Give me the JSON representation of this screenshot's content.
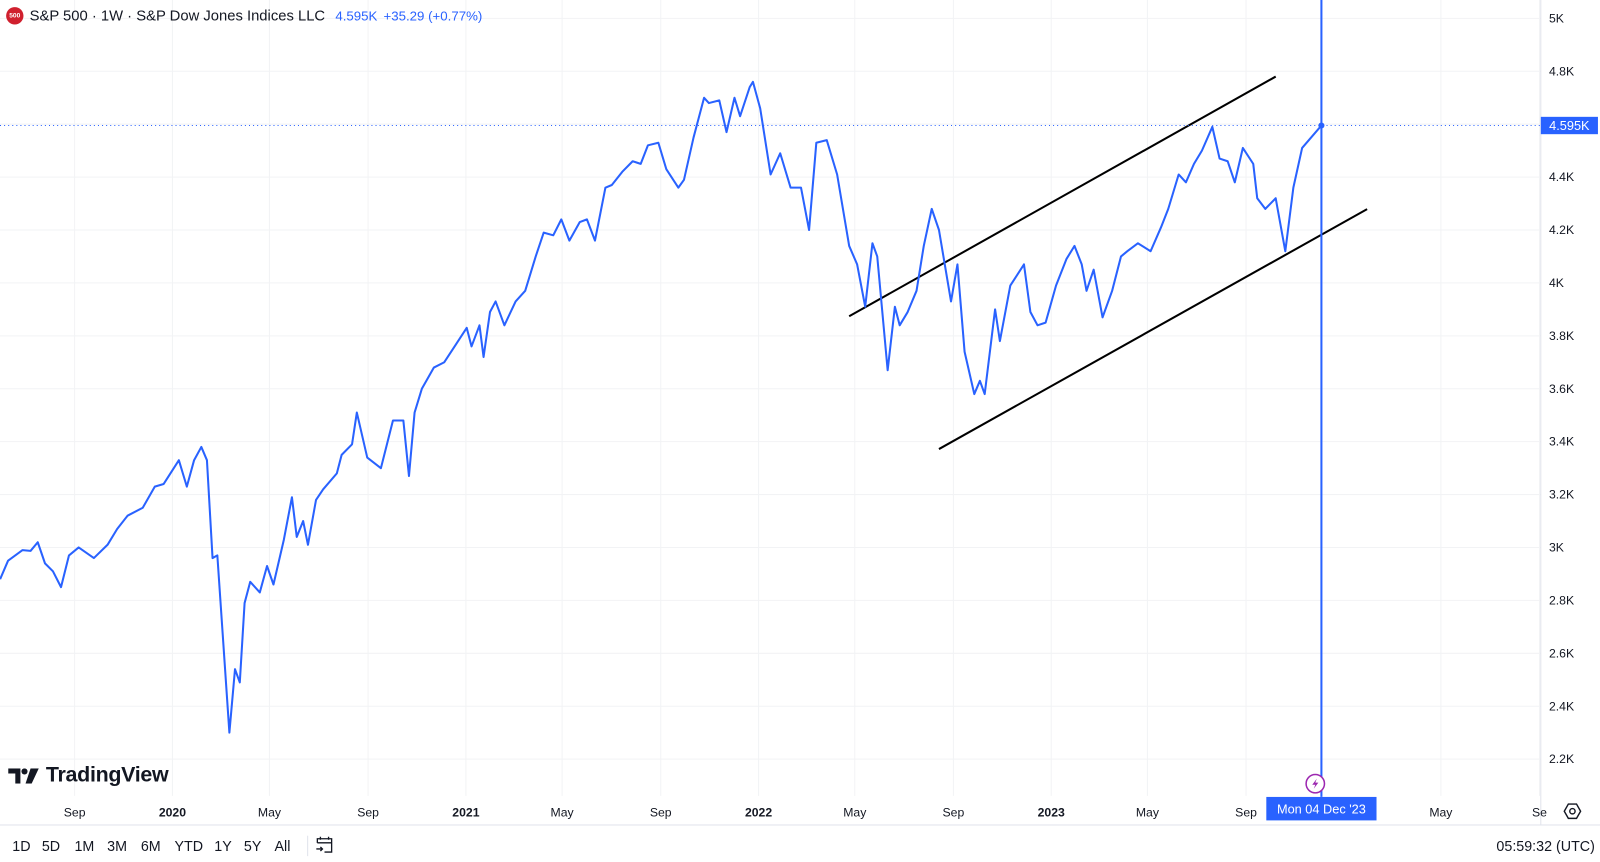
{
  "header": {
    "logo_text": "500",
    "title": "S&P 500 · 1W · S&P Dow Jones Indices LLC",
    "last_value": "4.595K",
    "change": "+35.29 (+0.77%)"
  },
  "watermark": "TradingView",
  "crosshair": {
    "date_label": "Mon 04 Dec '23",
    "date": "2023-12-04"
  },
  "price_label": "4.595K",
  "toolbar": {
    "timeframes": [
      "1D",
      "5D",
      "1M",
      "3M",
      "6M",
      "YTD",
      "1Y",
      "5Y",
      "All"
    ],
    "goto_date_icon": "calendar-arrow-icon",
    "clock": "05:59:32 (UTC)"
  },
  "colors": {
    "series": "#2962ff",
    "trendline": "#000000",
    "logo": "#d0202e",
    "event_marker": "#9c27b0"
  },
  "chart_data": {
    "type": "line",
    "title": "S&P 500 · 1W · S&P Dow Jones Indices LLC",
    "xlabel": "",
    "ylabel": "",
    "y_axis_position": "right",
    "ylim": [
      2060,
      5070
    ],
    "grid": true,
    "y_ticks": [
      "5K",
      "4.8K",
      "4.4K",
      "4.2K",
      "4K",
      "3.8K",
      "3.6K",
      "3.4K",
      "3.2K",
      "3K",
      "2.8K",
      "2.6K",
      "2.4K",
      "2.2K"
    ],
    "y_tick_values": [
      5000,
      4800,
      4400,
      4200,
      4000,
      3800,
      3600,
      3400,
      3200,
      3000,
      2800,
      2600,
      2400,
      2200
    ],
    "x_ticks": [
      {
        "label": "Sep",
        "date": "2019-09-01",
        "bold": false
      },
      {
        "label": "2020",
        "date": "2020-01-01",
        "bold": true
      },
      {
        "label": "May",
        "date": "2020-05-01",
        "bold": false
      },
      {
        "label": "Sep",
        "date": "2020-09-01",
        "bold": false
      },
      {
        "label": "2021",
        "date": "2021-01-01",
        "bold": true
      },
      {
        "label": "May",
        "date": "2021-05-01",
        "bold": false
      },
      {
        "label": "Sep",
        "date": "2021-09-01",
        "bold": false
      },
      {
        "label": "2022",
        "date": "2022-01-01",
        "bold": true
      },
      {
        "label": "May",
        "date": "2022-05-01",
        "bold": false
      },
      {
        "label": "Sep",
        "date": "2022-09-01",
        "bold": false
      },
      {
        "label": "2023",
        "date": "2023-01-01",
        "bold": true
      },
      {
        "label": "May",
        "date": "2023-05-01",
        "bold": false
      },
      {
        "label": "Sep",
        "date": "2023-09-01",
        "bold": false
      },
      {
        "label": "May",
        "date": "2024-05-01",
        "bold": false
      },
      {
        "label": "Se",
        "date": "2024-09-01",
        "bold": false
      }
    ],
    "series": [
      {
        "dates": [
          "2019-05-31",
          "2019-06-10",
          "2019-06-28",
          "2019-07-08",
          "2019-07-17",
          "2019-07-26",
          "2019-08-05",
          "2019-08-15",
          "2019-08-25",
          "2019-09-06",
          "2019-09-25",
          "2019-10-12",
          "2019-10-24",
          "2019-11-06",
          "2019-11-25",
          "2019-12-10",
          "2019-12-21",
          "2020-01-09",
          "2020-01-19",
          "2020-01-28",
          "2020-02-06",
          "2020-02-13",
          "2020-02-20",
          "2020-02-26",
          "2020-03-12",
          "2020-03-19",
          "2020-03-25",
          "2020-03-31",
          "2020-04-07",
          "2020-04-19",
          "2020-04-28",
          "2020-05-06",
          "2020-05-19",
          "2020-05-29",
          "2020-06-04",
          "2020-06-12",
          "2020-06-18",
          "2020-06-28",
          "2020-07-07",
          "2020-07-24",
          "2020-07-30",
          "2020-08-12",
          "2020-08-18",
          "2020-08-31",
          "2020-09-17",
          "2020-10-02",
          "2020-10-15",
          "2020-10-22",
          "2020-10-29",
          "2020-11-07",
          "2020-11-22",
          "2020-12-05",
          "2020-12-20",
          "2021-01-02",
          "2021-01-08",
          "2021-01-18",
          "2021-01-23",
          "2021-01-31",
          "2021-02-07",
          "2021-02-18",
          "2021-03-04",
          "2021-03-16",
          "2021-03-29",
          "2021-04-08",
          "2021-04-20",
          "2021-04-30",
          "2021-05-10",
          "2021-05-23",
          "2021-06-01",
          "2021-06-11",
          "2021-06-24",
          "2021-07-02",
          "2021-07-15",
          "2021-07-28",
          "2021-08-07",
          "2021-08-16",
          "2021-08-29",
          "2021-09-08",
          "2021-09-23",
          "2021-09-30",
          "2021-10-12",
          "2021-10-25",
          "2021-10-31",
          "2021-11-13",
          "2021-11-22",
          "2021-12-02",
          "2021-12-09",
          "2021-12-21",
          "2021-12-25",
          "2022-01-03",
          "2022-01-16",
          "2022-01-28",
          "2022-02-10",
          "2022-02-23",
          "2022-03-05",
          "2022-03-14",
          "2022-03-27",
          "2022-04-09",
          "2022-04-24",
          "2022-05-04",
          "2022-05-14",
          "2022-05-23",
          "2022-05-29",
          "2022-06-11",
          "2022-06-20",
          "2022-06-26",
          "2022-07-06",
          "2022-07-17",
          "2022-07-26",
          "2022-08-05",
          "2022-08-14",
          "2022-08-29",
          "2022-09-06",
          "2022-09-15",
          "2022-09-27",
          "2022-10-04",
          "2022-10-10",
          "2022-10-23",
          "2022-10-29",
          "2022-11-11",
          "2022-11-28",
          "2022-12-06",
          "2022-12-15",
          "2022-12-25",
          "2023-01-07",
          "2023-01-20",
          "2023-01-30",
          "2023-02-08",
          "2023-02-14",
          "2023-02-23",
          "2023-03-06",
          "2023-03-18",
          "2023-03-29",
          "2023-04-06",
          "2023-04-19",
          "2023-05-05",
          "2023-05-18",
          "2023-05-27",
          "2023-06-09",
          "2023-06-18",
          "2023-06-28",
          "2023-07-08",
          "2023-07-21",
          "2023-07-30",
          "2023-08-09",
          "2023-08-18",
          "2023-08-28",
          "2023-09-10",
          "2023-09-15",
          "2023-09-25",
          "2023-10-08",
          "2023-10-20",
          "2023-10-30",
          "2023-11-10",
          "2023-12-04"
        ],
        "values": [
          2880,
          2950,
          2990,
          2987,
          3020,
          2940,
          2910,
          2850,
          2970,
          3000,
          2960,
          3010,
          3070,
          3120,
          3150,
          3230,
          3240,
          3330,
          3230,
          3330,
          3380,
          3330,
          2960,
          2970,
          2300,
          2540,
          2490,
          2790,
          2870,
          2830,
          2930,
          2860,
          3030,
          3190,
          3040,
          3100,
          3010,
          3180,
          3220,
          3280,
          3350,
          3390,
          3510,
          3340,
          3300,
          3480,
          3480,
          3270,
          3510,
          3600,
          3680,
          3700,
          3770,
          3830,
          3760,
          3840,
          3720,
          3890,
          3930,
          3840,
          3930,
          3970,
          4100,
          4190,
          4180,
          4240,
          4160,
          4230,
          4240,
          4160,
          4360,
          4370,
          4420,
          4460,
          4450,
          4520,
          4530,
          4430,
          4360,
          4390,
          4550,
          4700,
          4680,
          4690,
          4570,
          4700,
          4630,
          4740,
          4760,
          4660,
          4410,
          4490,
          4360,
          4360,
          4200,
          4530,
          4540,
          4410,
          4140,
          4070,
          3910,
          4150,
          4100,
          3670,
          3910,
          3840,
          3890,
          3970,
          4140,
          4280,
          4200,
          3930,
          4070,
          3740,
          3580,
          3630,
          3580,
          3900,
          3780,
          3990,
          4070,
          3890,
          3840,
          3850,
          3990,
          4090,
          4140,
          4070,
          3970,
          4050,
          3870,
          3970,
          4100,
          4120,
          4150,
          4120,
          4210,
          4280,
          4410,
          4380,
          4450,
          4500,
          4590,
          4470,
          4460,
          4380,
          4510,
          4450,
          4320,
          4280,
          4320,
          4120,
          4360,
          4510,
          4595
        ]
      }
    ],
    "drawings": [
      {
        "type": "trendline",
        "from": {
          "date": "2022-04-24",
          "value": 3874
        },
        "to": {
          "date": "2023-10-08",
          "value": 4780
        }
      },
      {
        "type": "trendline",
        "from": {
          "date": "2022-08-14",
          "value": 3372
        },
        "to": {
          "date": "2024-01-30",
          "value": 4279
        }
      }
    ],
    "last_price": 4595
  }
}
